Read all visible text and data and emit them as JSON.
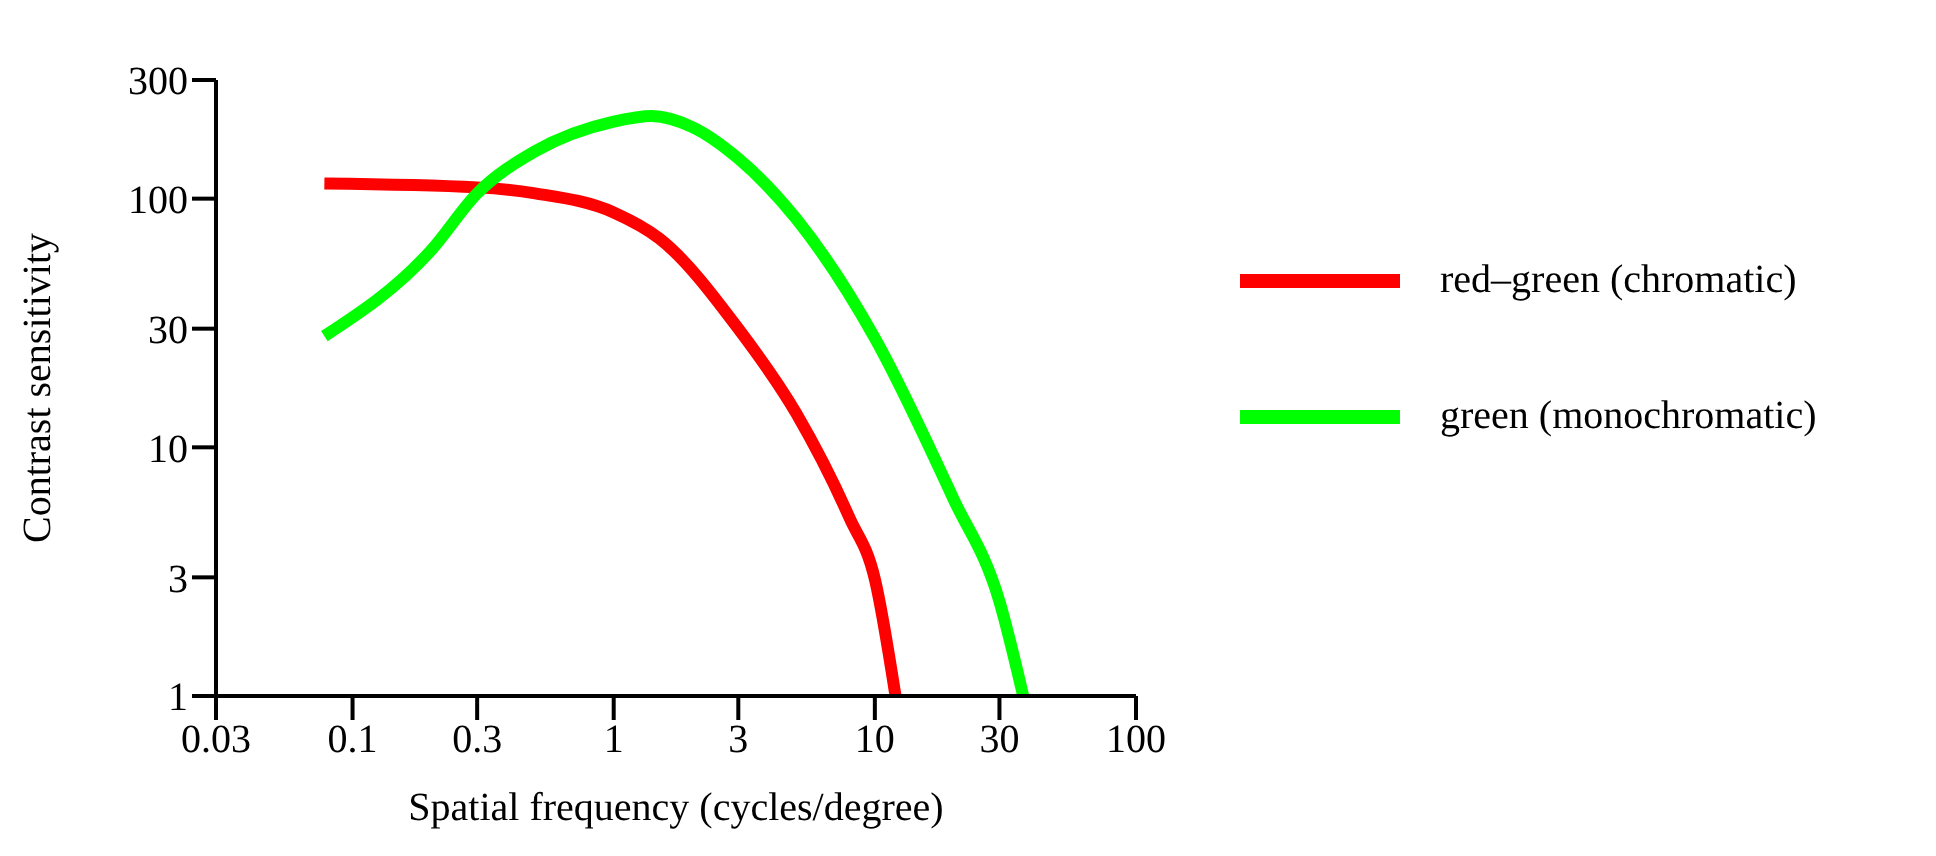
{
  "chart_data": {
    "type": "line",
    "xlabel": "Spatial frequency (cycles/degree)",
    "ylabel": "Contrast sensitivity",
    "log": "xy",
    "xlim": [
      0.03,
      100
    ],
    "xticks": [
      0.03,
      0.1,
      0.3,
      1,
      3,
      10,
      30,
      100
    ],
    "ylim": [
      1,
      300
    ],
    "yticks": [
      1,
      3,
      10,
      30,
      100,
      300
    ],
    "grid": false,
    "legend": "right",
    "series": [
      {
        "name": "red–green (chromatic)",
        "color": "#ff0000",
        "x": [
          0.078,
          0.3,
          0.5,
          1,
          1.5,
          3,
          5,
          8,
          10,
          12
        ],
        "values": [
          115,
          111,
          105,
          88,
          69,
          30,
          13.7,
          5.2,
          2.95,
          1
        ]
      },
      {
        "name": "green (monochromatic)",
        "color": "#00ff00",
        "x": [
          0.078,
          0.2,
          0.3,
          0.5,
          1,
          1.4,
          2,
          3,
          5,
          10,
          20,
          30,
          37
        ],
        "values": [
          28,
          62,
          105,
          155,
          204,
          215,
          194,
          145,
          83,
          27.5,
          6.2,
          2.4,
          1
        ]
      }
    ]
  }
}
